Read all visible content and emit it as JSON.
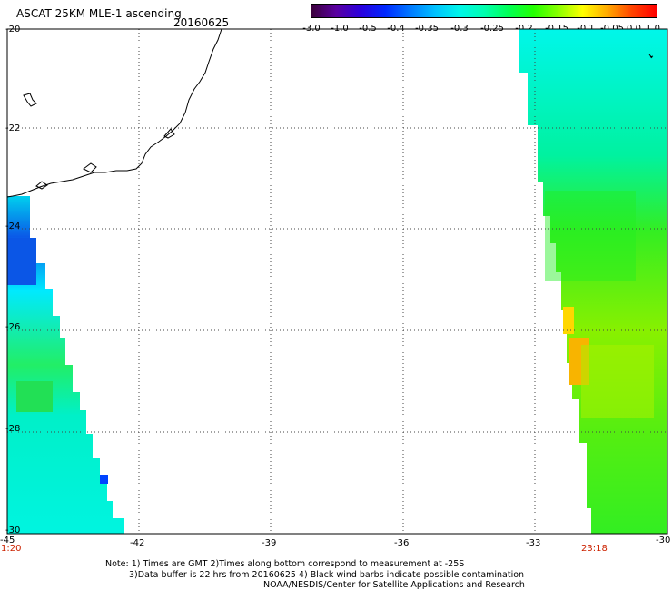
{
  "header": {
    "title": "ASCAT 25KM MLE-1 ascending",
    "date": "20160625"
  },
  "colorbar": {
    "labels": [
      "-3.0",
      "-1.0",
      "-0.5",
      "-0.4",
      "-0.35",
      "-0.3",
      "-0.25",
      "-0.2",
      "-0.15",
      "-0.1",
      "-0.05",
      "0.0",
      "1.0"
    ],
    "colors": [
      "#3b003b",
      "#5a00a0",
      "#2a00dd",
      "#0028ff",
      "#0078ff",
      "#00c0ff",
      "#00f6ea",
      "#00ffb0",
      "#00ff55",
      "#22ff00",
      "#88ff00",
      "#ffff00",
      "#ffaa00",
      "#ff4400",
      "#ff0000"
    ]
  },
  "map": {
    "lat_labels": [
      "-20",
      "-22",
      "-24",
      "-26",
      "-28",
      "-30"
    ],
    "lon_labels": [
      "-45",
      "-42",
      "-39",
      "-36",
      "-33",
      "-30"
    ],
    "time_left": "1:20",
    "time_right": "23:18"
  },
  "notes": {
    "line1": "Note: 1) Times are GMT 2)Times along bottom correspond to measurement at -25S",
    "line2": "3)Data buffer is 22 hrs from 20160625 4) Black wind barbs indicate possible contamination",
    "line3": "NOAA/NESDIS/Center for Satellite Applications and Research"
  }
}
